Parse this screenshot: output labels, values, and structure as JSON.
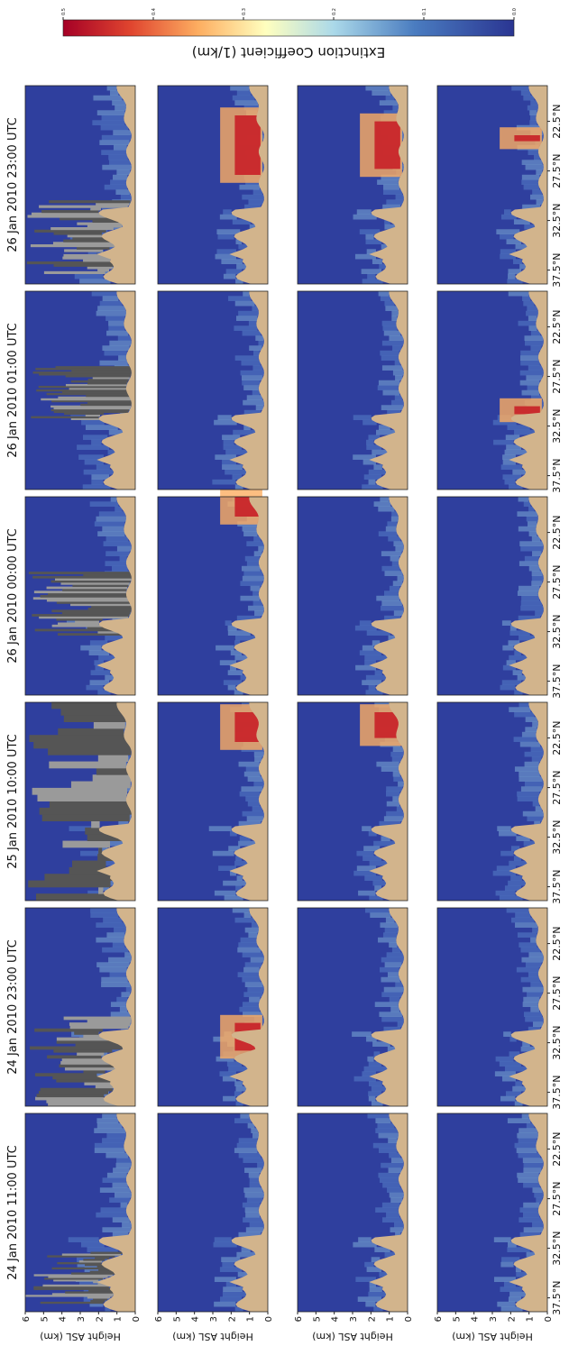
{
  "figure": {
    "panel_titles": [
      "24 Jan 2010 11:00 UTC",
      "24 Jan 2010 23:00 UTC",
      "25 Jan 2010 10:00 UTC",
      "26 Jan 2010 00:00 UTC",
      "26 Jan 2010 01:00 UTC",
      "26 Jan 2010 23:00 UTC"
    ],
    "y_axis": {
      "label": "Height ASL (km)",
      "ylim": [
        0,
        6
      ],
      "ticks": [
        0,
        1,
        2,
        3,
        4,
        5,
        6
      ]
    },
    "x_ticks": [
      "37.5°N",
      "32.5°N",
      "27.5°N",
      "22.5°N"
    ],
    "colorbar": {
      "label": "Extinction Coefficient (1/km)",
      "lim": [
        0,
        0.5
      ],
      "ticks": [
        {
          "value": 0.5,
          "label": "0.5"
        },
        {
          "value": 0.4,
          "label": "0.4"
        },
        {
          "value": 0.3,
          "label": "0.3"
        },
        {
          "value": 0.2,
          "label": "0.2"
        },
        {
          "value": 0.1,
          "label": "0.1"
        },
        {
          "value": 0,
          "label": "0.0"
        }
      ]
    }
  }
}
